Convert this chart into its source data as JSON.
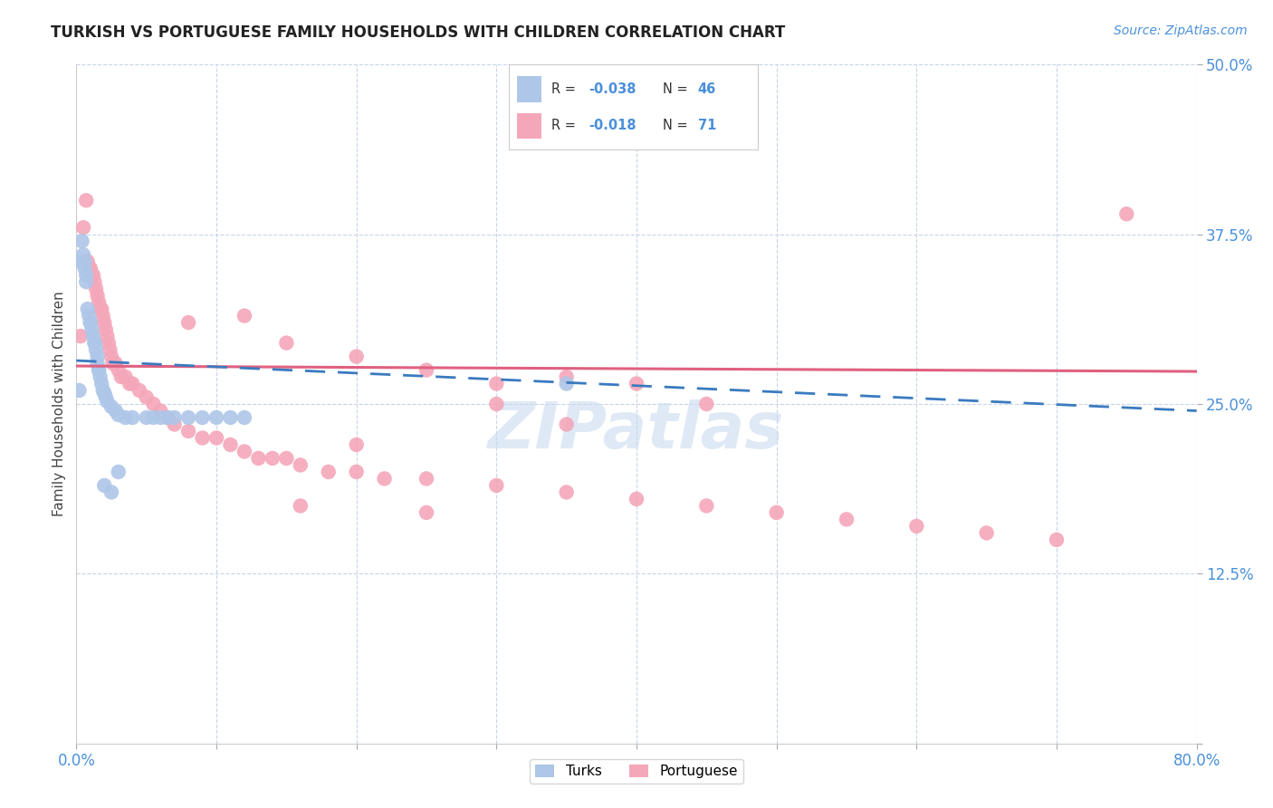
{
  "title": "TURKISH VS PORTUGUESE FAMILY HOUSEHOLDS WITH CHILDREN CORRELATION CHART",
  "source": "Source: ZipAtlas.com",
  "ylabel": "Family Households with Children",
  "yticks": [
    0.0,
    0.125,
    0.25,
    0.375,
    0.5
  ],
  "xticks": [
    0.0,
    0.1,
    0.2,
    0.3,
    0.4,
    0.5,
    0.6,
    0.7,
    0.8
  ],
  "turks_color": "#aec6e8",
  "portuguese_color": "#f4a7b9",
  "turks_line_color": "#3a7abf",
  "portuguese_line_color": "#e06080",
  "watermark_color": "#c5d8f0",
  "grid_color": "#c8d4e8",
  "axis_color": "#4a90d9",
  "background_color": "#ffffff",
  "xlim": [
    0.0,
    0.8
  ],
  "ylim": [
    0.0,
    0.5
  ],
  "turks_x": [
    0.002,
    0.003,
    0.004,
    0.005,
    0.006,
    0.006,
    0.007,
    0.007,
    0.008,
    0.009,
    0.01,
    0.01,
    0.011,
    0.012,
    0.013,
    0.013,
    0.014,
    0.015,
    0.015,
    0.016,
    0.016,
    0.017,
    0.018,
    0.019,
    0.02,
    0.021,
    0.022,
    0.025,
    0.028,
    0.03,
    0.035,
    0.04,
    0.05,
    0.055,
    0.06,
    0.065,
    0.07,
    0.08,
    0.09,
    0.1,
    0.11,
    0.12,
    0.02,
    0.025,
    0.03,
    0.35
  ],
  "turks_y": [
    0.26,
    0.355,
    0.37,
    0.36,
    0.355,
    0.35,
    0.345,
    0.34,
    0.32,
    0.315,
    0.31,
    0.31,
    0.305,
    0.3,
    0.295,
    0.295,
    0.29,
    0.285,
    0.28,
    0.275,
    0.275,
    0.27,
    0.265,
    0.26,
    0.258,
    0.255,
    0.252,
    0.248,
    0.245,
    0.242,
    0.24,
    0.24,
    0.24,
    0.24,
    0.24,
    0.24,
    0.24,
    0.24,
    0.24,
    0.24,
    0.24,
    0.24,
    0.19,
    0.185,
    0.2,
    0.265
  ],
  "portuguese_x": [
    0.003,
    0.005,
    0.007,
    0.008,
    0.009,
    0.01,
    0.011,
    0.012,
    0.013,
    0.014,
    0.015,
    0.016,
    0.017,
    0.018,
    0.019,
    0.02,
    0.021,
    0.022,
    0.023,
    0.024,
    0.025,
    0.026,
    0.028,
    0.03,
    0.032,
    0.035,
    0.038,
    0.04,
    0.045,
    0.05,
    0.055,
    0.06,
    0.065,
    0.07,
    0.08,
    0.09,
    0.1,
    0.11,
    0.12,
    0.13,
    0.14,
    0.15,
    0.16,
    0.18,
    0.2,
    0.22,
    0.25,
    0.3,
    0.35,
    0.4,
    0.45,
    0.5,
    0.55,
    0.6,
    0.65,
    0.7,
    0.08,
    0.12,
    0.16,
    0.2,
    0.25,
    0.3,
    0.35,
    0.4,
    0.45,
    0.75,
    0.15,
    0.2,
    0.25,
    0.3,
    0.35
  ],
  "portuguese_y": [
    0.3,
    0.38,
    0.4,
    0.355,
    0.35,
    0.35,
    0.345,
    0.345,
    0.34,
    0.335,
    0.33,
    0.325,
    0.32,
    0.32,
    0.315,
    0.31,
    0.305,
    0.3,
    0.295,
    0.29,
    0.285,
    0.28,
    0.28,
    0.275,
    0.27,
    0.27,
    0.265,
    0.265,
    0.26,
    0.255,
    0.25,
    0.245,
    0.24,
    0.235,
    0.23,
    0.225,
    0.225,
    0.22,
    0.215,
    0.21,
    0.21,
    0.21,
    0.205,
    0.2,
    0.2,
    0.195,
    0.195,
    0.19,
    0.185,
    0.18,
    0.175,
    0.17,
    0.165,
    0.16,
    0.155,
    0.15,
    0.31,
    0.315,
    0.175,
    0.22,
    0.17,
    0.25,
    0.27,
    0.265,
    0.25,
    0.39,
    0.295,
    0.285,
    0.275,
    0.265,
    0.235
  ],
  "turks_trend_x": [
    0.0,
    0.8
  ],
  "turks_trend_y": [
    0.282,
    0.245
  ],
  "portuguese_trend_x": [
    0.0,
    0.8
  ],
  "portuguese_trend_y": [
    0.278,
    0.274
  ],
  "legend_turks_r": "R = -0.038",
  "legend_turks_n": "N = 46",
  "legend_port_r": "R = -0.018",
  "legend_port_n": "N = 71"
}
